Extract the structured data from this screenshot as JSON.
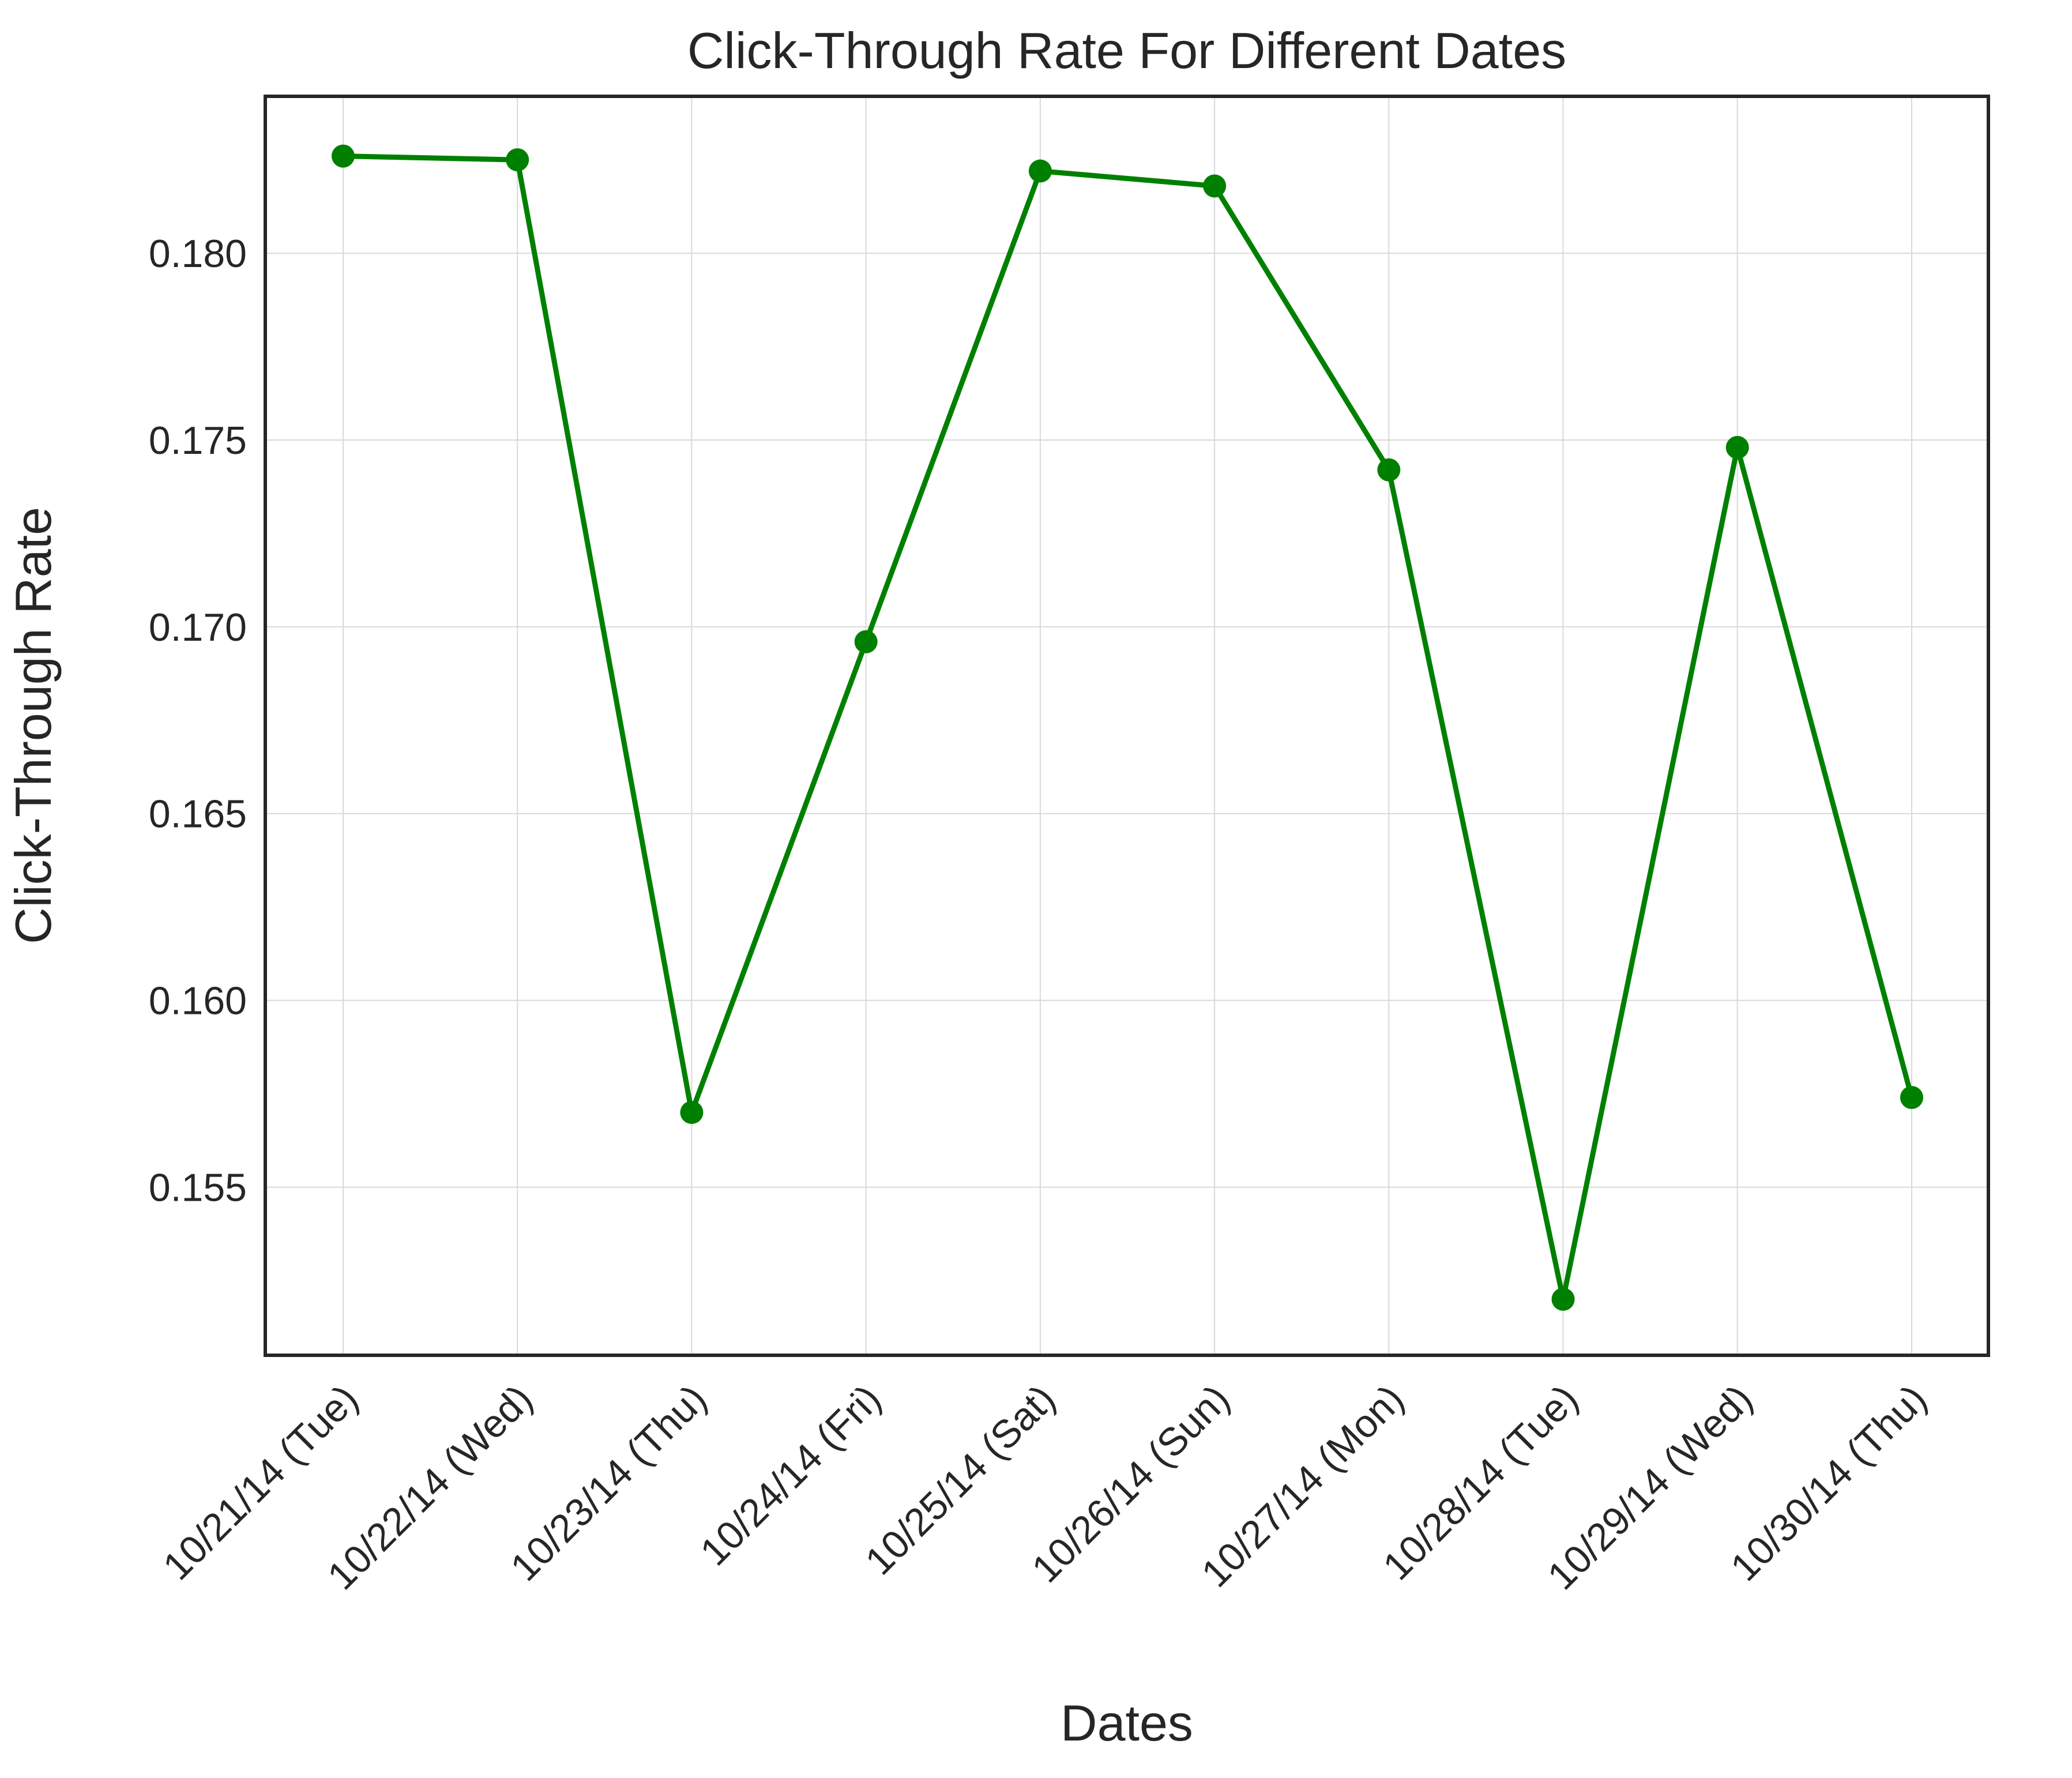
{
  "chart_data": {
    "type": "line",
    "title": "Click-Through Rate For Different Dates",
    "xlabel": "Dates",
    "ylabel": "Click-Through Rate",
    "categories": [
      "10/21/14 (Tue)",
      "10/22/14 (Wed)",
      "10/23/14 (Thu)",
      "10/24/14 (Fri)",
      "10/25/14 (Sat)",
      "10/26/14 (Sun)",
      "10/27/14 (Mon)",
      "10/28/14 (Tue)",
      "10/29/14 (Wed)",
      "10/30/14 (Thu)"
    ],
    "series": [
      {
        "values": [
          0.1826,
          0.1825,
          0.157,
          0.1696,
          0.1822,
          0.1818,
          0.1742,
          0.152,
          0.1748,
          0.1574
        ]
      }
    ],
    "yticks": [
      "0.155",
      "0.160",
      "0.165",
      "0.170",
      "0.175",
      "0.180"
    ],
    "ylim": [
      0.1505,
      0.1842
    ],
    "grid": true,
    "colors": {
      "line": "#008000",
      "marker": "#008000",
      "grid": "#d9d9d9",
      "axes": "#262626",
      "text": "#262626"
    }
  }
}
